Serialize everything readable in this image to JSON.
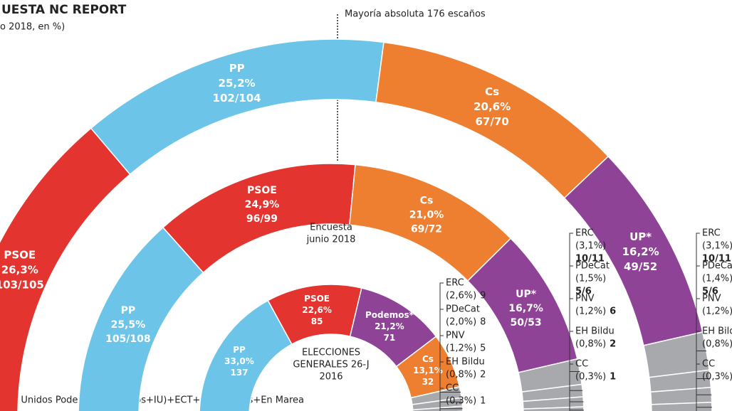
{
  "chart_data": {
    "type": "parliament",
    "title": "UESTA NC REPORT",
    "subtitle": "o 2018, en %)",
    "annotation": "Mayoría absoluta 176 escaños",
    "footnote": "P*= Unidos Podemos (Podemos+IU)+ECT+Compromís+En Marea",
    "rings": [
      {
        "parties": [
          "PSOE",
          "PP",
          "Cs",
          "UP*",
          "ERC",
          "PDeCat",
          "PNV",
          "EH Bildu",
          "CC"
        ],
        "values": [
          26.3,
          25.2,
          20.6,
          16.2,
          3.1,
          1.4,
          1.2,
          0.8,
          0.3
        ],
        "value_labels": [
          "26,3%",
          "25,2%",
          "20,6%",
          "16,2%",
          "(3,1%)",
          "(1,4%)",
          "(1,2%)",
          "(0,8%)",
          "(0,3%)"
        ],
        "seats": [
          "103/105",
          "102/104",
          "67/70",
          "49/52",
          "10/11",
          "5/6",
          null,
          null,
          null
        ],
        "colors": [
          "#e3342f",
          "#6cc5e8",
          "#ee7f30",
          "#8e4397",
          "#a7a9ac",
          "#a7a9ac",
          "#a7a9ac",
          "#a7a9ac",
          "#a7a9ac"
        ]
      },
      {
        "label_lines": [
          "Encuesta",
          "junio 2018"
        ],
        "parties": [
          "PP",
          "PSOE",
          "Cs",
          "UP*",
          "ERC",
          "PDeCat",
          "PNV",
          "EH Bildu",
          "CC"
        ],
        "values": [
          25.5,
          24.9,
          21.0,
          16.7,
          3.1,
          1.5,
          1.2,
          0.8,
          0.3
        ],
        "value_labels": [
          "25,5%",
          "24,9%",
          "21,0%",
          "16,7%",
          "(3,1%)",
          "(1,5%)",
          "(1,2%)",
          "(0,8%)",
          "(0,3%)"
        ],
        "seats": [
          "105/108",
          "96/99",
          "69/72",
          "50/53",
          "10/11",
          "5/6",
          "6",
          "2",
          "1"
        ],
        "colors": [
          "#6cc5e8",
          "#e3342f",
          "#ee7f30",
          "#8e4397",
          "#a7a9ac",
          "#a7a9ac",
          "#a7a9ac",
          "#a7a9ac",
          "#a7a9ac"
        ]
      },
      {
        "label_lines": [
          "ELECCIONES",
          "GENERALES 26-J",
          "2016"
        ],
        "parties": [
          "PP",
          "PSOE",
          "Podemos*",
          "Cs",
          "ERC",
          "PDeCat",
          "PNV",
          "EH Bildu",
          "CC"
        ],
        "values": [
          33.0,
          22.6,
          21.2,
          13.1,
          2.6,
          2.0,
          1.2,
          0.8,
          0.3
        ],
        "value_labels": [
          "33,0%",
          "22,6%",
          "21,2%",
          "13,1%",
          "(2,6%)",
          "(2,0%)",
          "(1,2%)",
          "(0,8%)",
          "(0,3%)"
        ],
        "seats": [
          "137",
          "85",
          "71",
          "32",
          "9",
          "8",
          "5",
          "2",
          "1"
        ],
        "colors": [
          "#6cc5e8",
          "#e3342f",
          "#8e4397",
          "#ee7f30",
          "#a7a9ac",
          "#a7a9ac",
          "#a7a9ac",
          "#a7a9ac",
          "#a7a9ac"
        ]
      }
    ]
  }
}
